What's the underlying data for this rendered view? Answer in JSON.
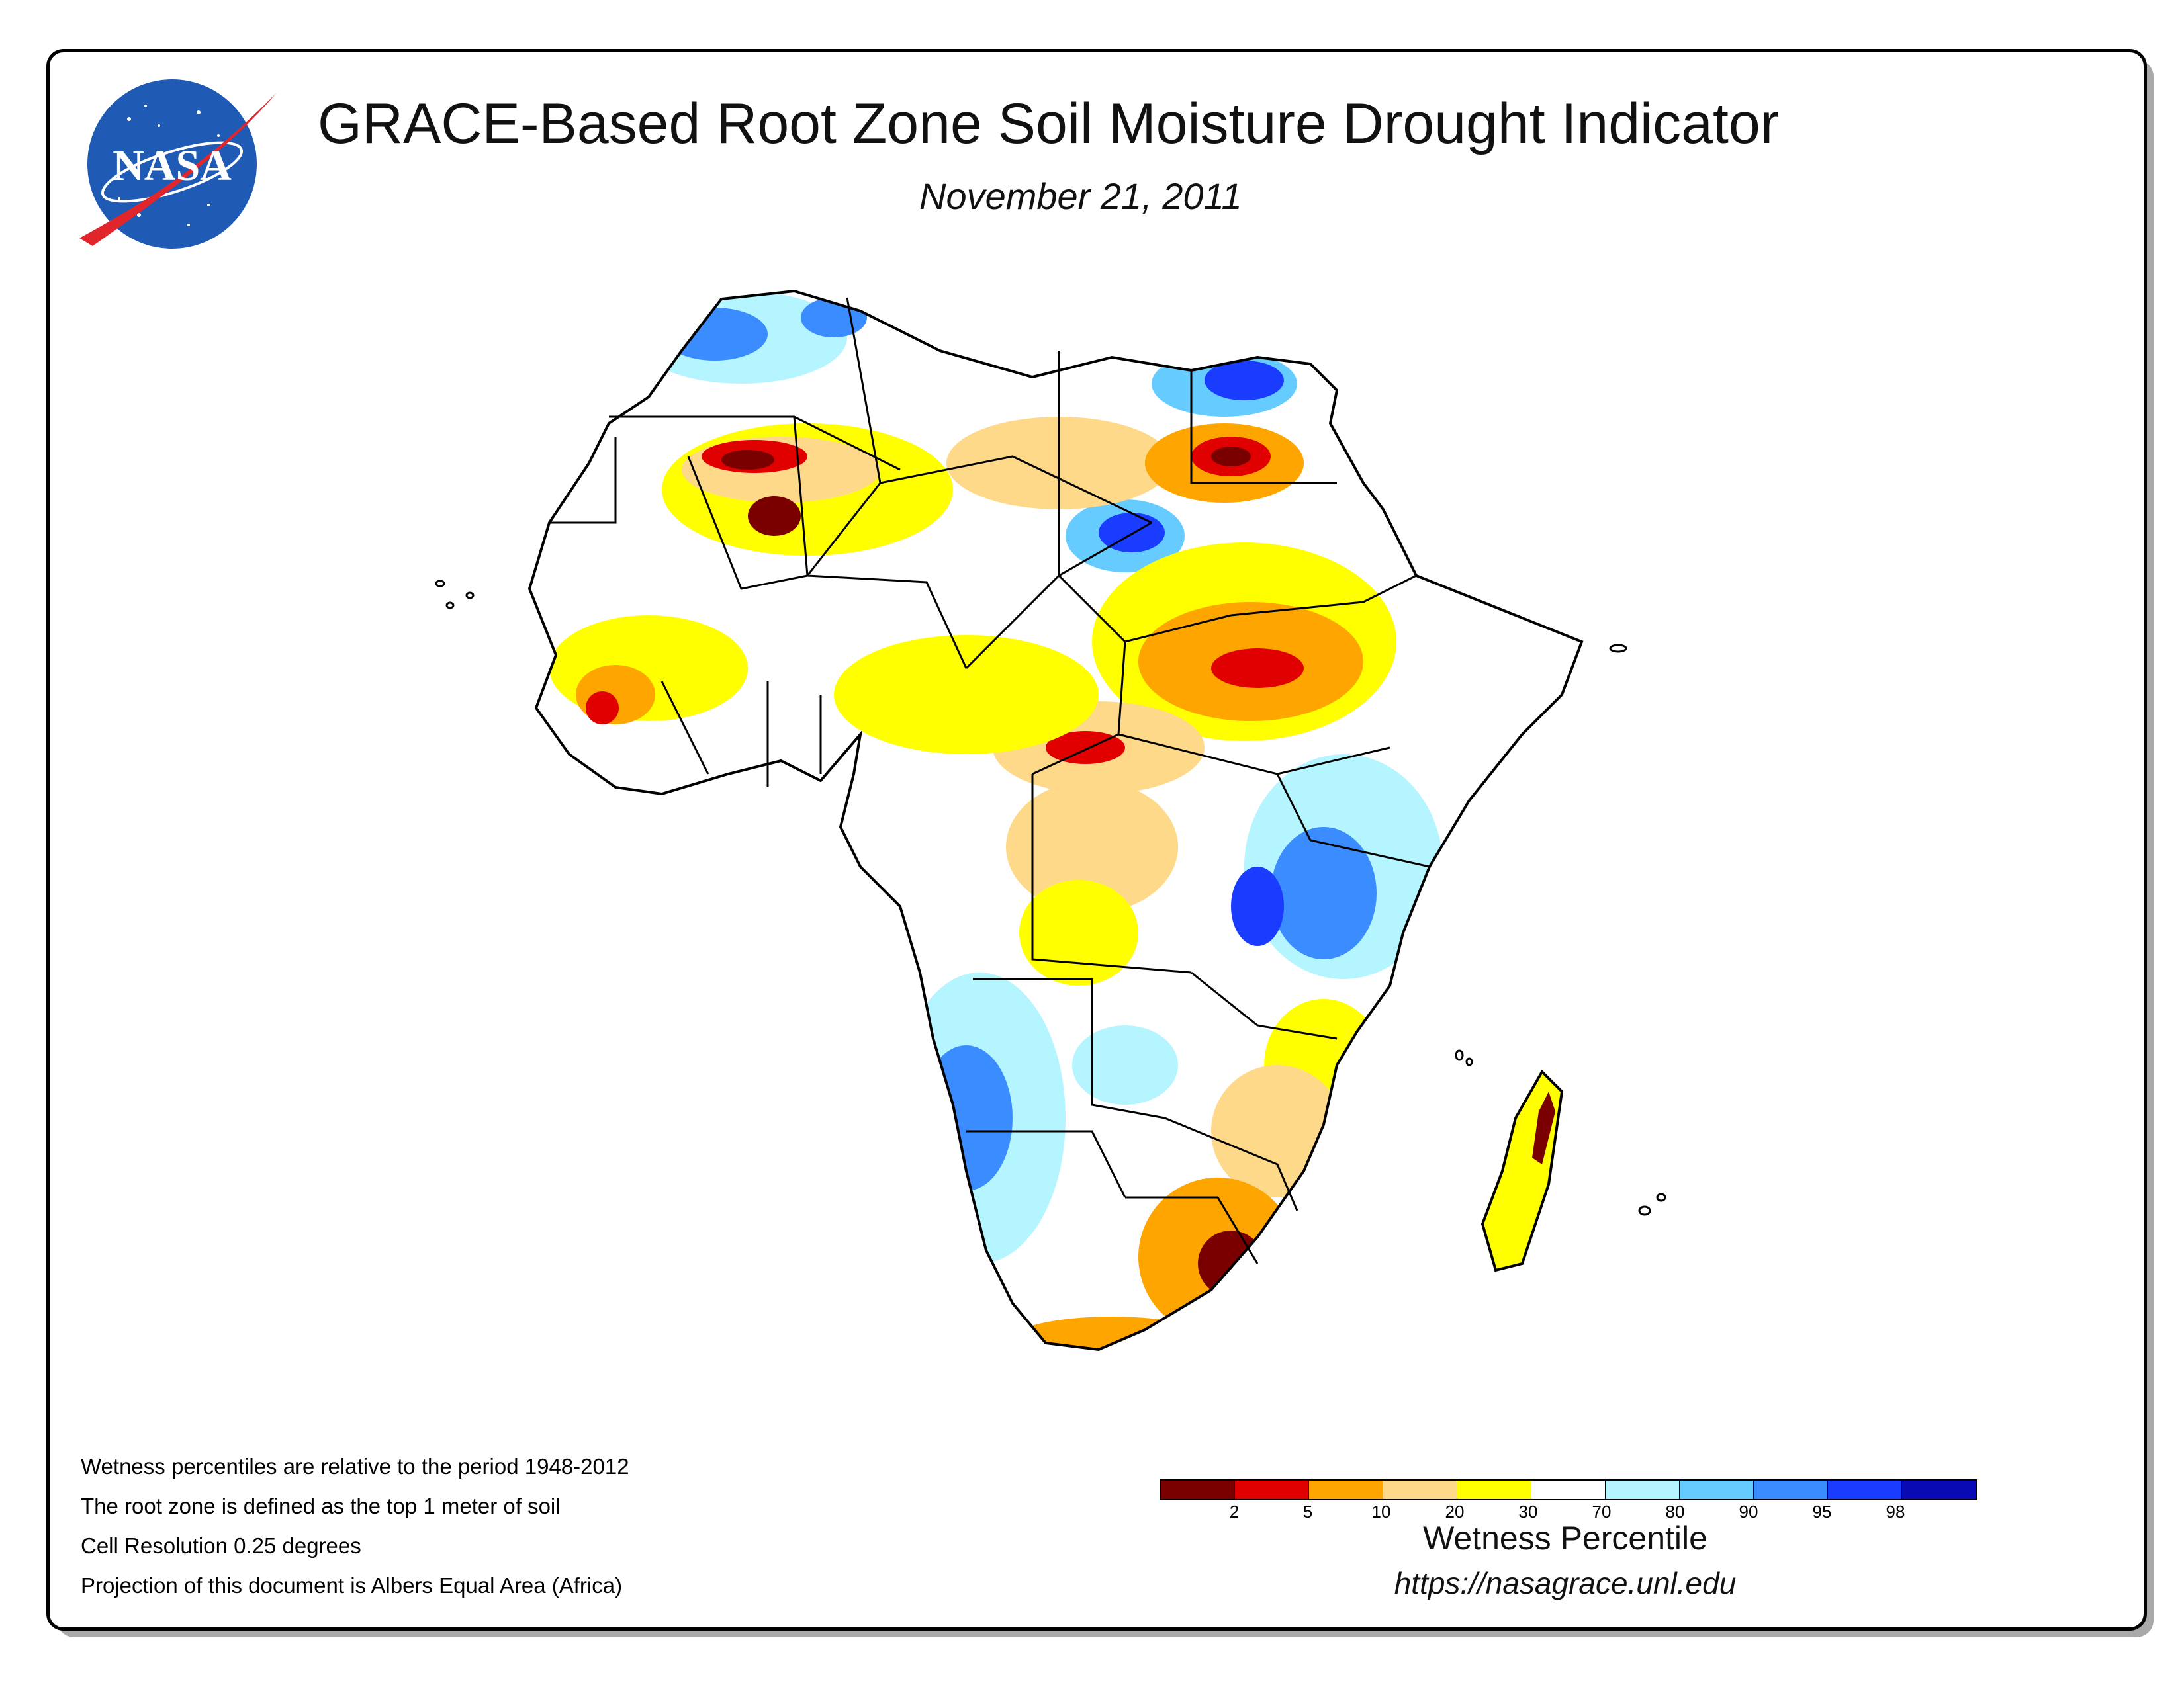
{
  "title": "GRACE-Based Root Zone Soil Moisture Drought Indicator",
  "date": "November 21, 2011",
  "logo_text": "NASA",
  "notes": [
    "Wetness percentiles are relative to the period 1948-2012",
    "The root zone is defined as the top 1 meter of soil",
    "Cell Resolution 0.25 degrees",
    "Projection of this document is Albers Equal Area (Africa)"
  ],
  "legend": {
    "title": "Wetness Percentile",
    "colors": [
      "#7a0000",
      "#e00000",
      "#ffa500",
      "#ffd98a",
      "#ffff00",
      "#ffffff",
      "#b4f5ff",
      "#66ccff",
      "#3a8cff",
      "#1a3cff",
      "#0a0ab4"
    ],
    "tick_labels": [
      "2",
      "5",
      "10",
      "20",
      "30",
      "70",
      "80",
      "90",
      "95",
      "98"
    ]
  },
  "url": "https://nasagrace.unl.edu"
}
